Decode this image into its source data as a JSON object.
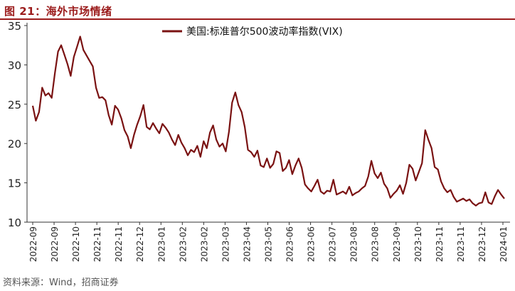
{
  "header": {
    "title": "图 21：海外市场情绪"
  },
  "source": "资料来源：Wind，招商证券",
  "colors": {
    "accent": "#9b1b1b",
    "line": "#7a1212"
  },
  "chart_data": {
    "type": "line",
    "title": "",
    "xlabel": "",
    "ylabel": "",
    "ylim": [
      10,
      35
    ],
    "yticks": [
      10,
      15,
      20,
      25,
      30,
      35
    ],
    "xticks": [
      "2022-09",
      "2022-09",
      "2022-10",
      "2022-11",
      "2022-11",
      "2022-12",
      "2023-01",
      "2023-02",
      "2023-02",
      "2023-03",
      "2023-04",
      "2023-05",
      "2023-06",
      "2023-06",
      "2023-07",
      "2023-08",
      "2023-08",
      "2023-09",
      "2023-10",
      "2023-11",
      "2023-11",
      "2023-12",
      "2024-01"
    ],
    "grid": false,
    "legend": "top-center",
    "series": [
      {
        "name": "美国:标准普尔500波动率指数(VIX)",
        "x_start": "2022-08-29",
        "x_end": "2024-01-08",
        "values": [
          24.8,
          22.9,
          24.0,
          27.1,
          26.1,
          26.4,
          25.8,
          28.9,
          31.7,
          32.5,
          31.3,
          30.1,
          28.6,
          31.0,
          32.3,
          33.6,
          31.9,
          31.2,
          30.5,
          29.8,
          27.1,
          25.8,
          25.9,
          25.5,
          23.6,
          22.4,
          24.8,
          24.3,
          23.2,
          21.7,
          20.9,
          19.4,
          21.1,
          22.4,
          23.5,
          24.9,
          22.1,
          21.8,
          22.6,
          21.9,
          21.3,
          22.5,
          22.0,
          21.4,
          20.5,
          19.8,
          21.1,
          20.1,
          19.4,
          18.5,
          19.2,
          18.9,
          19.7,
          18.3,
          20.3,
          19.4,
          21.4,
          22.3,
          20.5,
          19.6,
          20.0,
          19.0,
          21.5,
          25.2,
          26.5,
          24.9,
          24.0,
          22.1,
          19.2,
          18.9,
          18.3,
          19.1,
          17.2,
          17.0,
          18.1,
          16.9,
          17.4,
          19.0,
          18.8,
          16.5,
          16.9,
          17.9,
          16.1,
          17.2,
          18.1,
          16.9,
          14.8,
          14.3,
          13.9,
          14.6,
          15.4,
          13.9,
          13.6,
          14.0,
          13.9,
          15.4,
          13.5,
          13.7,
          13.9,
          13.6,
          14.5,
          13.4,
          13.7,
          13.9,
          14.3,
          14.6,
          15.8,
          17.8,
          16.2,
          15.6,
          16.3,
          14.9,
          14.3,
          13.1,
          13.6,
          14.0,
          14.7,
          13.6,
          15.0,
          17.3,
          16.8,
          15.3,
          16.4,
          17.5,
          21.7,
          20.5,
          19.4,
          17.0,
          16.7,
          15.2,
          14.3,
          13.8,
          14.1,
          13.2,
          12.6,
          12.8,
          13.0,
          12.7,
          12.9,
          12.4,
          12.1,
          12.4,
          12.5,
          13.8,
          12.5,
          12.3,
          13.3,
          14.1,
          13.5,
          13.0
        ]
      }
    ]
  }
}
